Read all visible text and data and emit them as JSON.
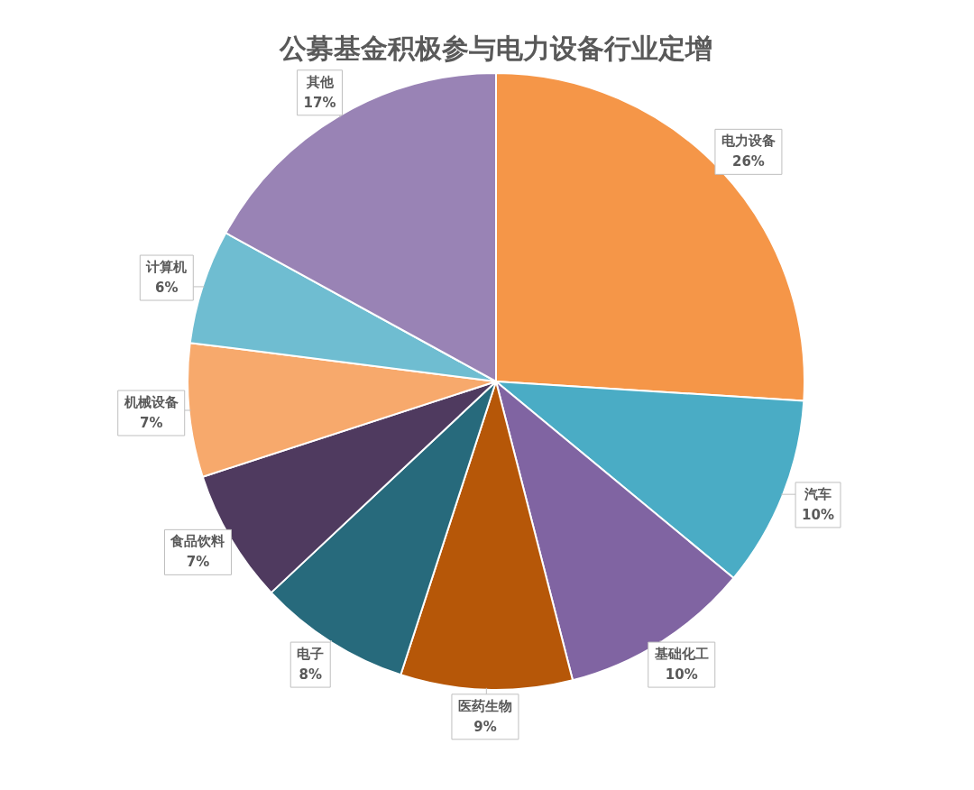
{
  "chart_data": {
    "type": "pie",
    "title": "公募基金积极参与电力设备行业定增",
    "categories": [
      "电力设备",
      "汽车",
      "基础化工",
      "医药生物",
      "电子",
      "食品饮料",
      "机械设备",
      "计算机",
      "其他"
    ],
    "values": [
      26,
      10,
      10,
      9,
      8,
      7,
      7,
      6,
      17
    ],
    "value_labels": [
      "26%",
      "10%",
      "10%",
      "9%",
      "8%",
      "7%",
      "7%",
      "6%",
      "17%"
    ],
    "colors": [
      "#f59648",
      "#4aacc5",
      "#8064a2",
      "#b65708",
      "#276a7c",
      "#4f3a5f",
      "#f7a96c",
      "#6fbdd1",
      "#9983b5"
    ],
    "legend": false
  }
}
